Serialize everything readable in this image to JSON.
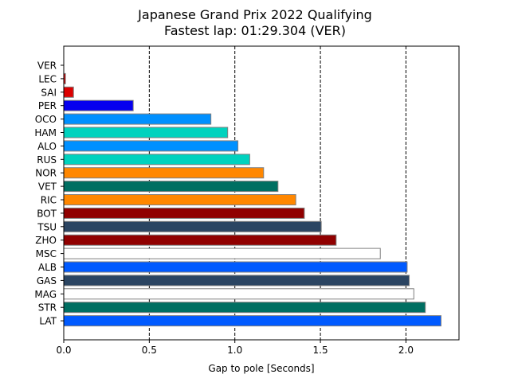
{
  "chart_data": {
    "type": "bar",
    "orientation": "horizontal",
    "title": "Japanese Grand Prix 2022 Qualifying",
    "subtitle": "Fastest lap: 01:29.304 (VER)",
    "xlabel": "Gap to pole [Seconds]",
    "ylabel": "",
    "xlim": [
      0,
      2.31
    ],
    "xticks": [
      0.0,
      0.5,
      1.0,
      1.5,
      2.0
    ],
    "xtick_labels": [
      "0.0",
      "0.5",
      "1.0",
      "1.5",
      "2.0"
    ],
    "grid": "vertical dashed lines at major x ticks",
    "categories": [
      "VER",
      "LEC",
      "SAI",
      "PER",
      "OCO",
      "HAM",
      "ALO",
      "RUS",
      "NOR",
      "VET",
      "RIC",
      "BOT",
      "TSU",
      "ZHO",
      "MSC",
      "ALB",
      "GAS",
      "MAG",
      "STR",
      "LAT"
    ],
    "values": [
      0.0,
      0.01,
      0.057,
      0.406,
      0.86,
      0.958,
      1.018,
      1.087,
      1.168,
      1.252,
      1.356,
      1.406,
      1.505,
      1.592,
      1.85,
      2.007,
      2.019,
      2.046,
      2.113,
      2.205
    ],
    "colors": [
      "#1e41ff",
      "#dc0000",
      "#dc0000",
      "#0600ef",
      "#0090ff",
      "#00d2be",
      "#0090ff",
      "#00d2be",
      "#ff8700",
      "#006f62",
      "#ff8700",
      "#900000",
      "#2b4562",
      "#900000",
      "#ffffff",
      "#005aff",
      "#2b4562",
      "#ffffff",
      "#006f62",
      "#005aff"
    ]
  }
}
